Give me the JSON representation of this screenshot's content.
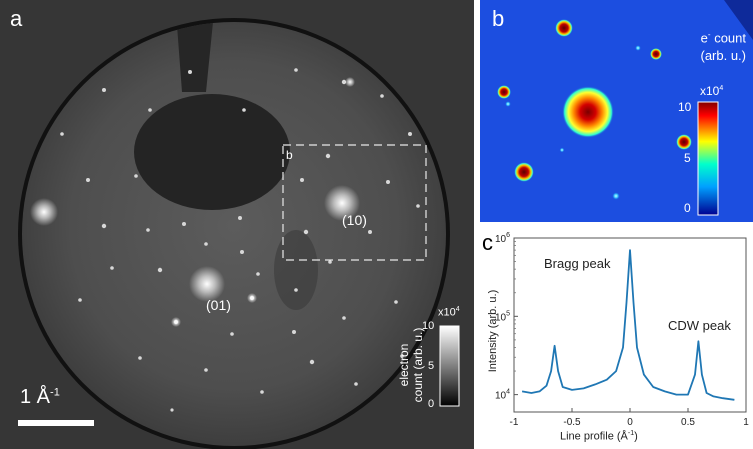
{
  "panel_a": {
    "letter": "a",
    "scale_bar": "1 Å",
    "scale_bar_exp": "-1",
    "inset_box_label": "b",
    "spot_10": "(10)",
    "spot_01": "(01)",
    "colorbar": {
      "multiplier": "x10",
      "multiplier_exp": "4",
      "ticks": [
        "10",
        "5",
        "0"
      ],
      "label_line1": "electron",
      "label_line2": "count (arb. u.)"
    }
  },
  "panel_b": {
    "letter": "b",
    "title_line1_prefix": "e",
    "title_line1_sup": "-",
    "title_line1_suffix": " count",
    "title_line2": "(arb. u.)",
    "colorbar": {
      "multiplier": "x10",
      "multiplier_exp": "4",
      "ticks": [
        "10",
        "5",
        "0"
      ]
    }
  },
  "panel_c": {
    "letter": "c",
    "ylabel": "Intensity (arb. u.)",
    "xlabel": "Line profile (Å",
    "xlabel_exp": "-1",
    "xlabel_close": ")",
    "annotation_bragg": "Bragg peak",
    "annotation_cdw": "CDW peak",
    "color": "#1f77b4"
  },
  "chart_data": {
    "type": "line",
    "title": "",
    "xlabel": "Line profile (Å-1)",
    "ylabel": "Intensity (arb. u.)",
    "xlim": [
      -1,
      1
    ],
    "ylim": [
      6000,
      1000000
    ],
    "yscale": "log",
    "xticks": [
      "-1",
      "-0.5",
      "0",
      "0.5",
      "1"
    ],
    "yticks": [
      "10^4",
      "10^5",
      "10^6"
    ],
    "annotations": [
      "Bragg peak",
      "CDW peak"
    ],
    "series": [
      {
        "name": "",
        "x": [
          -0.93,
          -0.85,
          -0.78,
          -0.72,
          -0.68,
          -0.65,
          -0.62,
          -0.58,
          -0.5,
          -0.4,
          -0.3,
          -0.2,
          -0.12,
          -0.06,
          -0.03,
          0.0,
          0.03,
          0.06,
          0.12,
          0.2,
          0.3,
          0.4,
          0.5,
          0.56,
          0.59,
          0.62,
          0.66,
          0.72,
          0.8,
          0.9
        ],
        "y": [
          11000,
          10500,
          11000,
          13000,
          20000,
          42000,
          20000,
          12500,
          11500,
          12000,
          13500,
          15500,
          20000,
          40000,
          150000,
          700000,
          150000,
          40000,
          18000,
          12500,
          11000,
          10000,
          10000,
          18000,
          48000,
          18000,
          10500,
          9500,
          9000,
          8600
        ]
      }
    ]
  }
}
